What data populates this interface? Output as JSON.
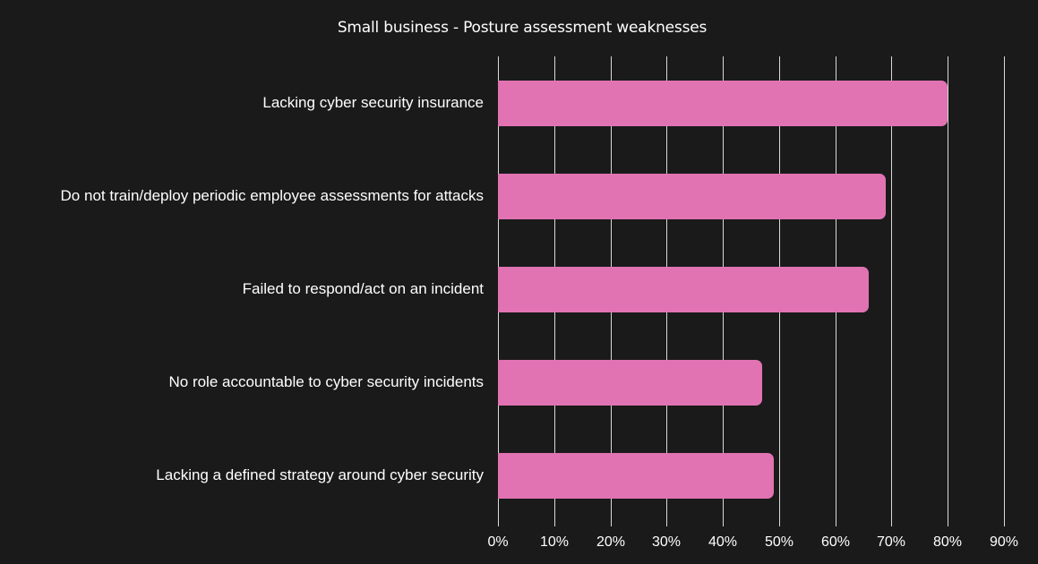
{
  "chart_data": {
    "type": "bar",
    "orientation": "horizontal",
    "title": "Small business - Posture assessment weaknesses",
    "categories": [
      "Lacking cyber security insurance",
      "Do not train/deploy periodic employee assessments for attacks",
      "Failed to respond/act on an incident",
      "No role accountable to cyber security incidents",
      "Lacking a defined strategy around cyber security"
    ],
    "values": [
      80,
      69,
      66,
      47,
      49
    ],
    "xlabel": "",
    "ylabel": "",
    "xlim": [
      0,
      90
    ],
    "x_ticks": [
      "0%",
      "10%",
      "20%",
      "30%",
      "40%",
      "50%",
      "60%",
      "70%",
      "80%",
      "90%"
    ],
    "grid": true,
    "legend": null,
    "bar_color": "#e173b3",
    "background": "#1a1a1a"
  }
}
